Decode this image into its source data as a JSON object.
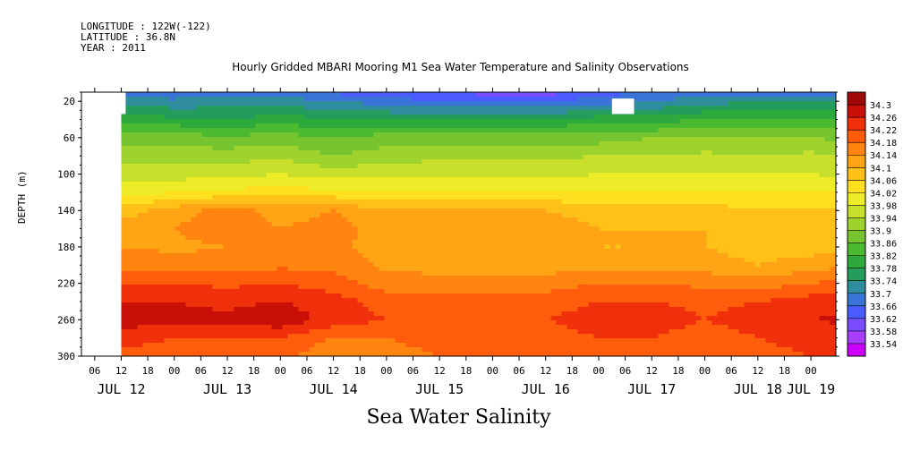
{
  "header": {
    "longitude": "LONGITUDE : 122W(-122)",
    "latitude": "LATITUDE : 36.8N",
    "year": "YEAR : 2011"
  },
  "chart_data": {
    "type": "heatmap",
    "title": "Hourly Gridded MBARI Mooring M1 Sea Water Temperature and Salinity Observations",
    "subtitle": "Sea Water Salinity",
    "ylabel": "DEPTH (m)",
    "xlabel": "",
    "ylim": [
      300,
      10
    ],
    "y_ticks": [
      20,
      60,
      100,
      140,
      180,
      220,
      260,
      300
    ],
    "x_start": "JUL 12 03:00",
    "x_end": "JUL 19 18:00",
    "x_hour_ticks": [
      "06",
      "12",
      "18",
      "00",
      "06",
      "12",
      "18",
      "00",
      "06",
      "12",
      "18",
      "00",
      "06",
      "12",
      "18",
      "00",
      "06",
      "12",
      "18",
      "00",
      "06",
      "12",
      "18",
      "00",
      "06",
      "12",
      "18",
      "00",
      "06",
      "12",
      "18",
      "00"
    ],
    "x_day_labels": [
      "JUL 12",
      "JUL 13",
      "JUL 14",
      "JUL 15",
      "JUL 16",
      "JUL 17",
      "JUL 18",
      "JUL 19"
    ],
    "colorbar_levels": [
      33.54,
      33.58,
      33.62,
      33.66,
      33.7,
      33.74,
      33.78,
      33.82,
      33.86,
      33.9,
      33.94,
      33.98,
      34.02,
      34.06,
      34.1,
      34.14,
      34.18,
      34.22,
      34.26,
      34.3
    ],
    "depths_m": [
      10,
      20,
      40,
      60,
      80,
      100,
      120,
      140,
      160,
      180,
      200,
      220,
      240,
      260,
      280,
      300
    ],
    "times": [
      "JUL 12 12:00",
      "JUL 13 00:00",
      "JUL 13 12:00",
      "JUL 14 00:00",
      "JUL 14 12:00",
      "JUL 15 00:00",
      "JUL 15 12:00",
      "JUL 16 00:00",
      "JUL 16 12:00",
      "JUL 17 00:00",
      "JUL 17 12:00",
      "JUL 18 00:00",
      "JUL 18 12:00",
      "JUL 19 00:00",
      "JUL 19 12:00"
    ],
    "salinity": [
      [
        33.68,
        33.67,
        33.68,
        33.68,
        33.65,
        33.64,
        33.62,
        33.6,
        33.6,
        33.64,
        33.67,
        33.68,
        33.68,
        33.68,
        33.69
      ],
      [
        33.72,
        33.71,
        33.72,
        33.72,
        33.7,
        33.68,
        33.66,
        33.66,
        33.66,
        33.68,
        33.7,
        33.72,
        33.74,
        33.74,
        33.74
      ],
      [
        33.8,
        33.79,
        33.78,
        33.8,
        33.78,
        33.78,
        33.78,
        33.78,
        33.78,
        33.8,
        33.8,
        33.82,
        33.82,
        33.82,
        33.82
      ],
      [
        33.88,
        33.88,
        33.87,
        33.88,
        33.86,
        33.88,
        33.88,
        33.88,
        33.88,
        33.88,
        33.9,
        33.9,
        33.9,
        33.9,
        33.88
      ],
      [
        33.92,
        33.92,
        33.92,
        33.93,
        33.9,
        33.92,
        33.93,
        33.93,
        33.93,
        33.94,
        33.94,
        33.95,
        33.94,
        33.95,
        33.94
      ],
      [
        33.96,
        33.96,
        33.97,
        33.98,
        33.96,
        33.97,
        33.97,
        33.97,
        33.97,
        33.98,
        33.98,
        33.98,
        33.98,
        33.98,
        33.97
      ],
      [
        34.0,
        34.02,
        34.03,
        34.04,
        34.03,
        34.02,
        34.02,
        34.02,
        34.02,
        34.03,
        34.03,
        34.03,
        34.02,
        34.02,
        34.02
      ],
      [
        34.08,
        34.12,
        34.16,
        34.12,
        34.14,
        34.1,
        34.1,
        34.1,
        34.1,
        34.08,
        34.08,
        34.08,
        34.06,
        34.06,
        34.08
      ],
      [
        34.12,
        34.14,
        34.17,
        34.14,
        34.16,
        34.12,
        34.13,
        34.13,
        34.13,
        34.1,
        34.1,
        34.1,
        34.08,
        34.08,
        34.1
      ],
      [
        34.14,
        34.13,
        34.14,
        34.14,
        34.15,
        34.12,
        34.11,
        34.11,
        34.11,
        34.1,
        34.1,
        34.1,
        34.08,
        34.08,
        34.1
      ],
      [
        34.17,
        34.16,
        34.16,
        34.17,
        34.17,
        34.13,
        34.12,
        34.12,
        34.12,
        34.12,
        34.12,
        34.12,
        34.1,
        34.12,
        34.14
      ],
      [
        34.22,
        34.22,
        34.21,
        34.22,
        34.2,
        34.16,
        34.16,
        34.16,
        34.16,
        34.18,
        34.18,
        34.17,
        34.16,
        34.18,
        34.2
      ],
      [
        34.26,
        34.26,
        34.25,
        34.26,
        34.24,
        34.2,
        34.2,
        34.2,
        34.2,
        34.22,
        34.22,
        34.21,
        34.22,
        34.24,
        34.25
      ],
      [
        34.28,
        34.27,
        34.27,
        34.29,
        34.24,
        34.22,
        34.22,
        34.22,
        34.22,
        34.24,
        34.24,
        34.22,
        34.24,
        34.26,
        34.27
      ],
      [
        34.24,
        34.22,
        34.22,
        34.22,
        34.18,
        34.18,
        34.2,
        34.2,
        34.2,
        34.22,
        34.22,
        34.2,
        34.22,
        34.24,
        34.24
      ],
      [
        34.2,
        34.2,
        34.2,
        34.2,
        34.14,
        34.16,
        34.18,
        34.18,
        34.18,
        34.2,
        34.2,
        34.18,
        34.2,
        34.22,
        34.22
      ]
    ]
  },
  "colors": {
    "palette": [
      "#cc00ff",
      "#a83cff",
      "#7a4cff",
      "#4a5cff",
      "#3a74d8",
      "#2e8c9c",
      "#239c5c",
      "#2eaa3c",
      "#4cba30",
      "#76c530",
      "#9ed32e",
      "#c8e02c",
      "#ecec28",
      "#ffe020",
      "#ffc018",
      "#ffa414",
      "#ff8410",
      "#ff5c0c",
      "#f0300a",
      "#c81008",
      "#a00808"
    ]
  }
}
